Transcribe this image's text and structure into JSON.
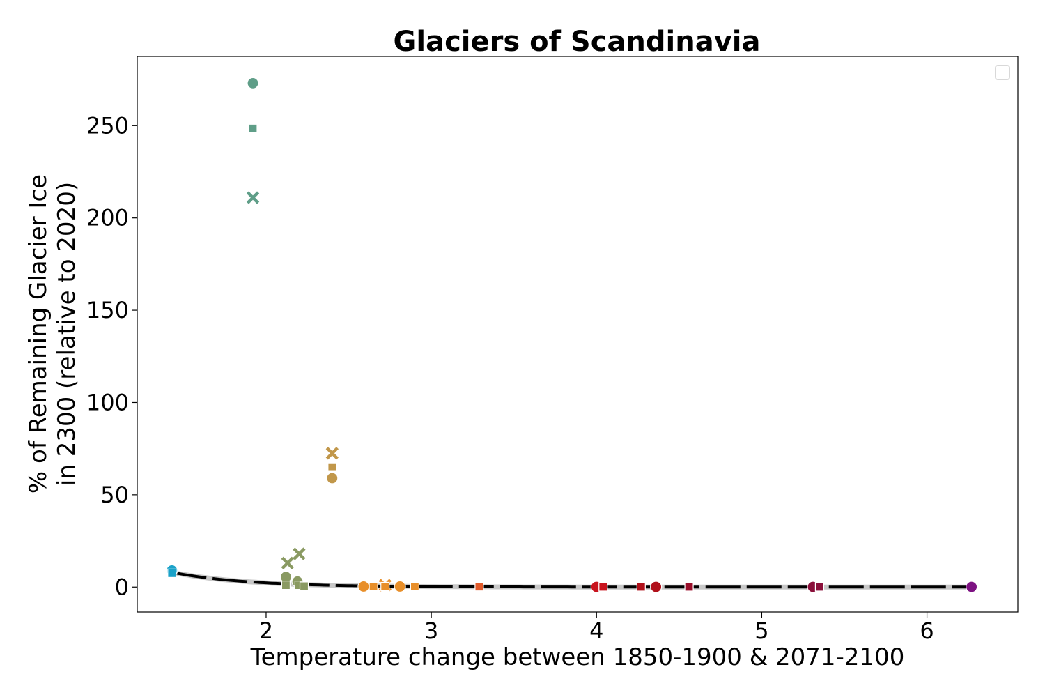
{
  "chart_data": {
    "type": "scatter",
    "title": "Glaciers of Scandinavia",
    "xlabel": "Temperature change between 1850-1900 & 2071-2100",
    "ylabel_line1": "% of Remaining Glacier Ice",
    "ylabel_line2": "in 2300 (relative to 2020)",
    "xlim": [
      1.22,
      6.55
    ],
    "ylim": [
      -13.5,
      287.5
    ],
    "xticks": [
      2,
      3,
      4,
      5,
      6
    ],
    "yticks": [
      0,
      50,
      100,
      150,
      200,
      250
    ],
    "grid": false,
    "legend": "top-right (empty)",
    "points": [
      {
        "x": 1.92,
        "y": 273,
        "marker": "circle",
        "color": "#5f9e88"
      },
      {
        "x": 1.92,
        "y": 248.5,
        "marker": "square",
        "color": "#5f9e88"
      },
      {
        "x": 1.92,
        "y": 211,
        "marker": "x",
        "color": "#5f9e88"
      },
      {
        "x": 2.4,
        "y": 72.5,
        "marker": "x",
        "color": "#c1974a"
      },
      {
        "x": 2.4,
        "y": 65,
        "marker": "square",
        "color": "#c1974a"
      },
      {
        "x": 2.4,
        "y": 59,
        "marker": "circle",
        "color": "#c1974a"
      },
      {
        "x": 1.43,
        "y": 9,
        "marker": "circle",
        "color": "#1aa2c9"
      },
      {
        "x": 1.43,
        "y": 7.5,
        "marker": "square",
        "color": "#1aa2c9"
      },
      {
        "x": 2.13,
        "y": 13,
        "marker": "x",
        "color": "#8a9a62"
      },
      {
        "x": 2.2,
        "y": 18,
        "marker": "x",
        "color": "#8a9a62"
      },
      {
        "x": 2.12,
        "y": 5.5,
        "marker": "circle",
        "color": "#8a9a62"
      },
      {
        "x": 2.12,
        "y": 1,
        "marker": "square",
        "color": "#8a9a62"
      },
      {
        "x": 2.19,
        "y": 3,
        "marker": "circle",
        "color": "#8a9a62"
      },
      {
        "x": 2.2,
        "y": 1,
        "marker": "square",
        "color": "#8a9a62"
      },
      {
        "x": 2.23,
        "y": 0.5,
        "marker": "square",
        "color": "#8a9a62"
      },
      {
        "x": 2.59,
        "y": 0.3,
        "marker": "circle",
        "color": "#e88f2a"
      },
      {
        "x": 2.65,
        "y": 0.3,
        "marker": "square",
        "color": "#e88f2a"
      },
      {
        "x": 2.72,
        "y": 1,
        "marker": "x",
        "color": "#e88f2a"
      },
      {
        "x": 2.72,
        "y": 0.3,
        "marker": "square",
        "color": "#e88f2a"
      },
      {
        "x": 2.81,
        "y": 0.3,
        "marker": "circle",
        "color": "#e88f2a"
      },
      {
        "x": 2.9,
        "y": 0.3,
        "marker": "square",
        "color": "#e88f2a"
      },
      {
        "x": 3.29,
        "y": 0.2,
        "marker": "square",
        "color": "#e25a2a"
      },
      {
        "x": 4.0,
        "y": 0.1,
        "marker": "circle",
        "color": "#c8141e"
      },
      {
        "x": 4.04,
        "y": 0.1,
        "marker": "square",
        "color": "#c8141e"
      },
      {
        "x": 4.27,
        "y": 0.1,
        "marker": "square",
        "color": "#b0101a"
      },
      {
        "x": 4.36,
        "y": 0.1,
        "marker": "circle",
        "color": "#b0101a"
      },
      {
        "x": 4.56,
        "y": 0.1,
        "marker": "square",
        "color": "#9a0e2a"
      },
      {
        "x": 5.31,
        "y": 0.1,
        "marker": "circle",
        "color": "#8a0f3a"
      },
      {
        "x": 5.35,
        "y": 0.1,
        "marker": "square",
        "color": "#8a0f3a"
      },
      {
        "x": 6.27,
        "y": 0.1,
        "marker": "circle",
        "color": "#7d1282"
      }
    ],
    "fit_curve": {
      "type": "exponential",
      "color": "#000000",
      "x_range": [
        1.43,
        6.27
      ],
      "a": 8.0,
      "k": 2.2,
      "x0": 1.43
    },
    "fit_band_color": "#c8c8c8"
  }
}
